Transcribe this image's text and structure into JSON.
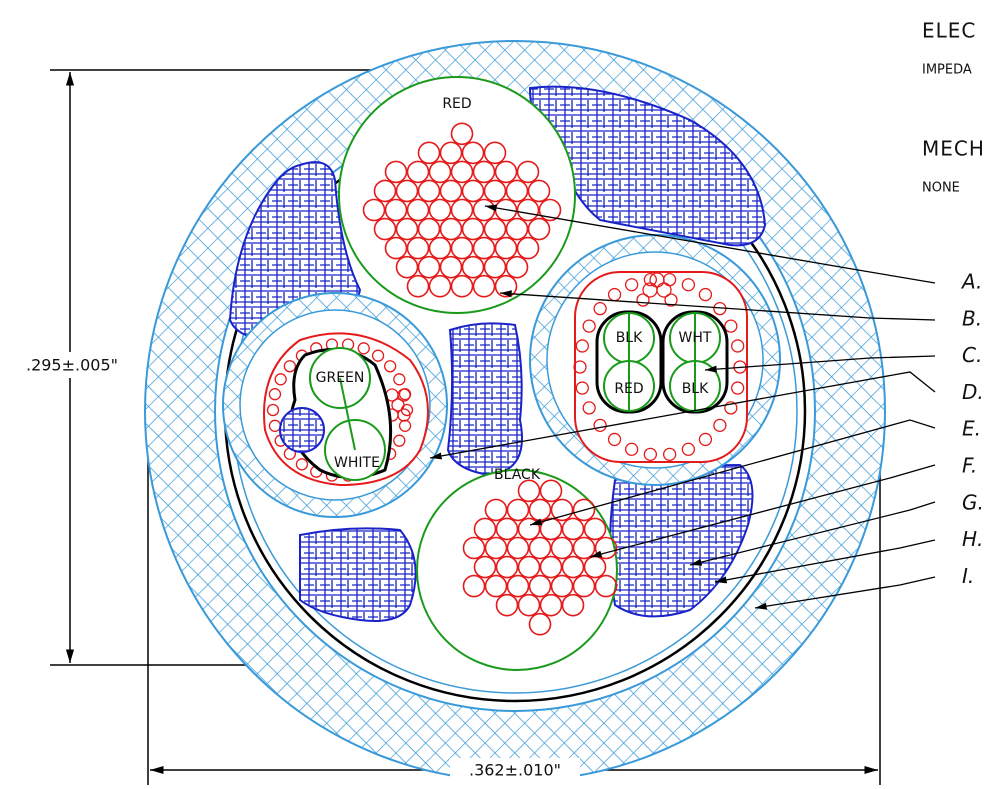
{
  "notes": {
    "electrical": "ELEC",
    "impedance": "IMPEDA",
    "mechanical": "MECH",
    "mechanical_value": "NONE"
  },
  "dimensions": {
    "height": ".295±.005\"",
    "width": ".362±.010\""
  },
  "conductors": {
    "red": "RED",
    "black": "BLACK",
    "green": "GREEN",
    "white": "WHITE",
    "pair_blk_1": "BLK",
    "pair_wht": "WHT",
    "pair_red": "RED",
    "pair_blk_2": "BLK"
  },
  "callouts": [
    "A.",
    "B.",
    "C.",
    "D.",
    "E.",
    "F.",
    "G.",
    "H.",
    "I."
  ]
}
